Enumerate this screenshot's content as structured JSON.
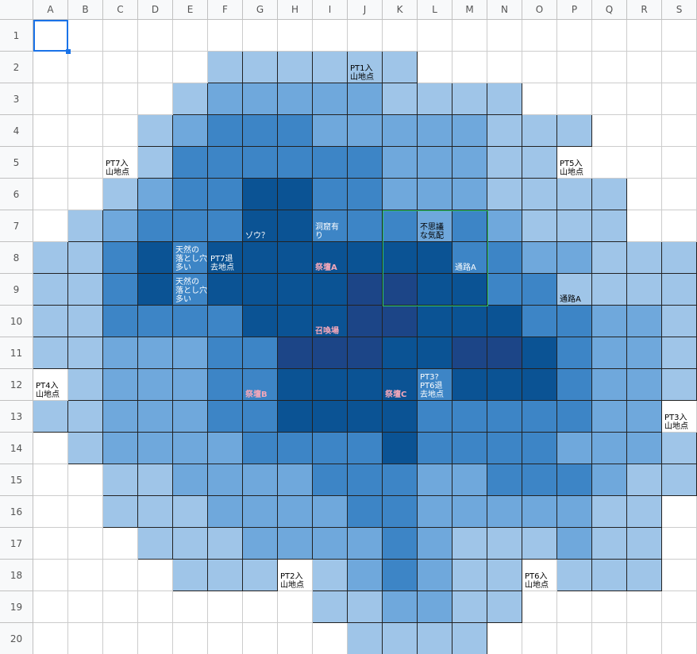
{
  "columns": [
    "A",
    "B",
    "C",
    "D",
    "E",
    "F",
    "G",
    "H",
    "I",
    "J",
    "K",
    "L",
    "M",
    "N",
    "O",
    "P",
    "Q",
    "R",
    "S"
  ],
  "rows": [
    1,
    2,
    3,
    4,
    5,
    6,
    7,
    8,
    9,
    10,
    11,
    12,
    13,
    14,
    15,
    16,
    17,
    18,
    19,
    20
  ],
  "cells": {
    "J2": "PT1入\n山地点",
    "C5": "PT7入\n山地点",
    "P5": "PT5入\n山地点",
    "G7": "ゾウ？",
    "I7": "洞窟有\nり",
    "L7": "不思議\nな気配",
    "E8": "天然の\n落とし穴\n多い",
    "F8": "PT7退\n去地点",
    "I8": "祭壇A",
    "M8": "通路A",
    "E9": "天然の\n落とし穴\n多い",
    "P9": "通路A",
    "I10": "召喚場",
    "A12": "PT4入\n山地点",
    "G12": "祭壇B",
    "K12": "祭壇C",
    "L12": "PT3?\nPT6退\n去地点",
    "S13": "PT3入\n山地点",
    "H18": "PT2入\n山地点",
    "O18": "PT6入\n山地点"
  }
}
